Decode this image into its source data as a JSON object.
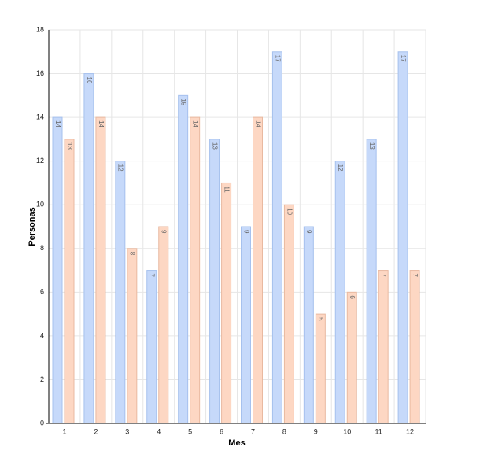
{
  "chart_data": {
    "type": "bar",
    "x_label": "Mes",
    "y_label": "Personas",
    "categories": [
      "1",
      "2",
      "3",
      "4",
      "5",
      "6",
      "7",
      "8",
      "9",
      "10",
      "11",
      "12"
    ],
    "series": [
      {
        "color": "#c6d9fa",
        "values": [
          14,
          16,
          12,
          7,
          15,
          13,
          9,
          17,
          9,
          12,
          13,
          17
        ]
      },
      {
        "color": "#fdd7c3",
        "values": [
          13,
          14,
          8,
          9,
          14,
          11,
          14,
          10,
          5,
          6,
          7,
          7
        ]
      }
    ],
    "ylim": [
      0,
      18
    ],
    "yticks": [
      0,
      2,
      4,
      6,
      8,
      10,
      12,
      14,
      16,
      18
    ],
    "grid": true
  }
}
